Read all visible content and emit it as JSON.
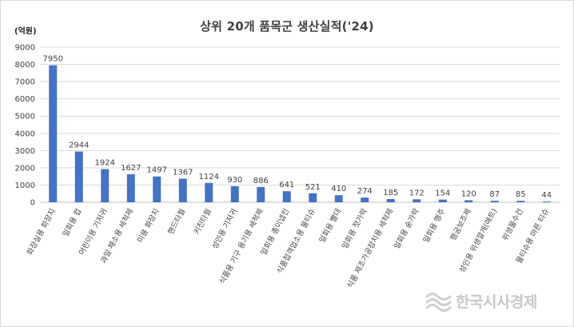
{
  "chart_data": {
    "type": "bar",
    "title": "상위 20개 품목군 생산실적('24)",
    "unit_label": "(억원)",
    "ylabel": "",
    "xlabel": "",
    "ylim": [
      0,
      9000
    ],
    "yticks": [
      0,
      1000,
      2000,
      3000,
      4000,
      5000,
      6000,
      7000,
      8000,
      9000
    ],
    "grid": true,
    "bar_color": "#4472C4",
    "categories": [
      "화장실용 화장지",
      "일회용 컵",
      "어린이용 기저귀",
      "과일 채소용 세척제",
      "미용 화장지",
      "핸드타월",
      "키친타월",
      "성인용 기저귀",
      "식품용 기구 용기용 세척제",
      "일회용 종이냅킨",
      "식품접객업소용 물티슈",
      "일회용 빨대",
      "일회용 젓가락",
      "식품 제조가공장치용 세척제",
      "일회용 숟가락",
      "일회용 행주",
      "헹굼보조제",
      "성인용 위생깔개(매트)",
      "위생물수건",
      "물티슈용 마른 티슈"
    ],
    "values": [
      7950,
      2944,
      1924,
      1627,
      1497,
      1367,
      1124,
      930,
      886,
      641,
      521,
      410,
      274,
      185,
      172,
      154,
      120,
      87,
      85,
      44
    ]
  },
  "watermark": {
    "text": "한국시사경제",
    "icon": "wave-logo-icon"
  }
}
